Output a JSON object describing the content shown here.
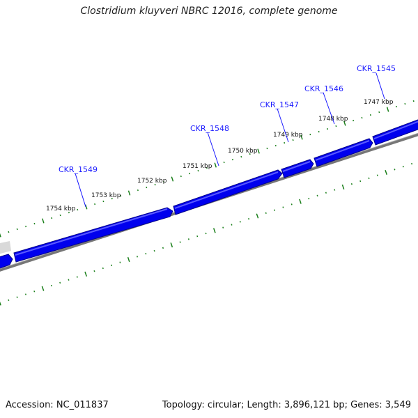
{
  "title": "Clostridium kluyveri NBRC 12016, complete genome",
  "footer": {
    "accession": "Accession: NC_011837",
    "stats": "Topology: circular; Length: 3,896,121 bp; Genes: 3,549"
  },
  "colors": {
    "gene_fill": "#0000ee",
    "gene_dark": "#00008a",
    "gene_light": "#5a5aff",
    "backbone": "#777777",
    "tick": "#1a7f1a",
    "label": "#1a1aff"
  },
  "kbp_labels": [
    "1747 kbp",
    "1748 kbp",
    "1749 kbp",
    "1750 kbp",
    "1751 kbp",
    "1752 kbp",
    "1753 kbp",
    "1754 kbp"
  ],
  "gene_labels": [
    "CKR_1545",
    "CKR_1546",
    "CKR_1547",
    "CKR_1548",
    "CKR_1549"
  ]
}
